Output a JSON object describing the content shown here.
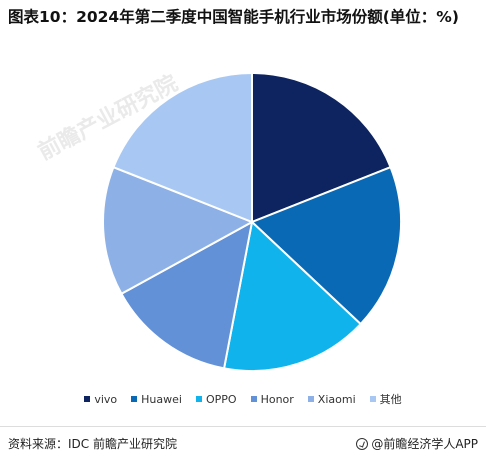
{
  "title": "图表10：2024年第二季度中国智能手机行业市场份额(单位：%)",
  "watermark_text": "前瞻产业研究院",
  "chart_data": {
    "type": "pie",
    "categories": [
      "vivo",
      "Huawei",
      "OPPO",
      "Honor",
      "Xiaomi",
      "其他"
    ],
    "values": [
      19,
      18,
      16,
      14,
      14,
      19
    ],
    "colors": [
      "#0d2460",
      "#0a69b5",
      "#11b3ec",
      "#6391d7",
      "#8db1e6",
      "#a8c8f3"
    ],
    "legend_position": "bottom",
    "unit": "%"
  },
  "footer": {
    "source": "资料来源：IDC 前瞻产业研究院",
    "brand": "@前瞻经济学人APP"
  }
}
